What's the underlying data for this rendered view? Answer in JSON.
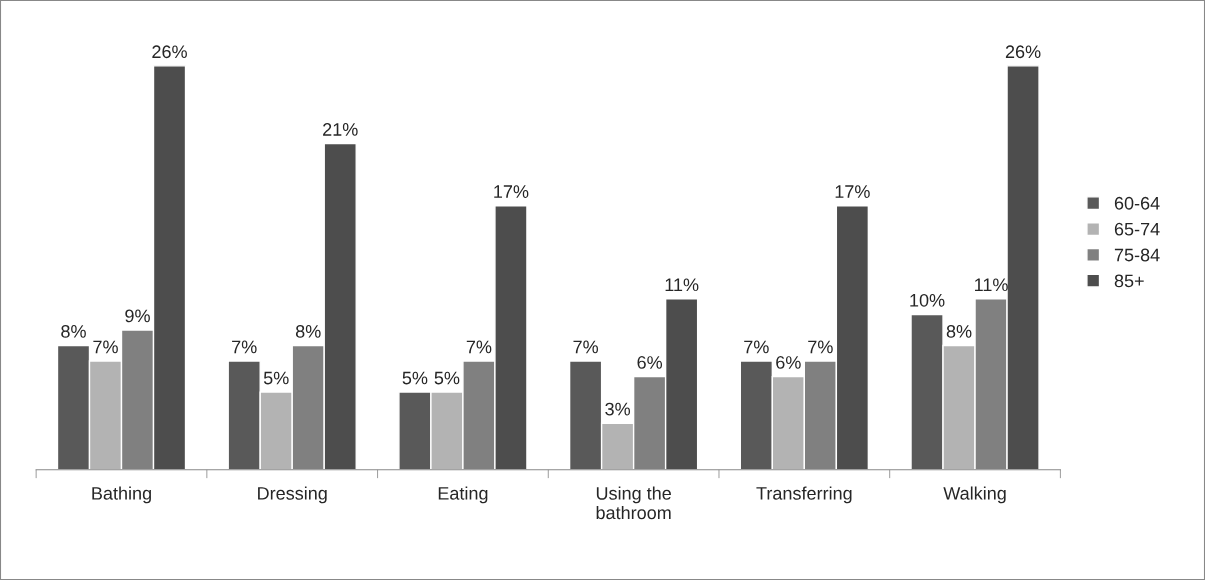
{
  "chart_data": {
    "type": "bar",
    "categories": [
      "Bathing",
      "Dressing",
      "Eating",
      "Using the\nbathroom",
      "Transferring",
      "Walking"
    ],
    "series": [
      {
        "name": "60-64",
        "color": "#595959",
        "values": [
          8,
          7,
          5,
          7,
          7,
          10
        ],
        "value_labels": [
          "8%",
          "7%",
          "5%",
          "7%",
          "7%",
          "10%"
        ]
      },
      {
        "name": "65-74",
        "color": "#b3b3b3",
        "values": [
          7,
          5,
          5,
          3,
          6,
          8
        ],
        "value_labels": [
          "7%",
          "5%",
          "5%",
          "3%",
          "6%",
          "8%"
        ]
      },
      {
        "name": "75-84",
        "color": "#808080",
        "values": [
          9,
          8,
          7,
          6,
          7,
          11
        ],
        "value_labels": [
          "9%",
          "8%",
          "7%",
          "6%",
          "7%",
          "11%"
        ]
      },
      {
        "name": "85+",
        "color": "#4d4d4d",
        "values": [
          26,
          21,
          17,
          11,
          17,
          26
        ],
        "value_labels": [
          "26%",
          "21%",
          "17%",
          "11%",
          "17%",
          "26%"
        ]
      }
    ],
    "legend": "right",
    "grid": false
  }
}
